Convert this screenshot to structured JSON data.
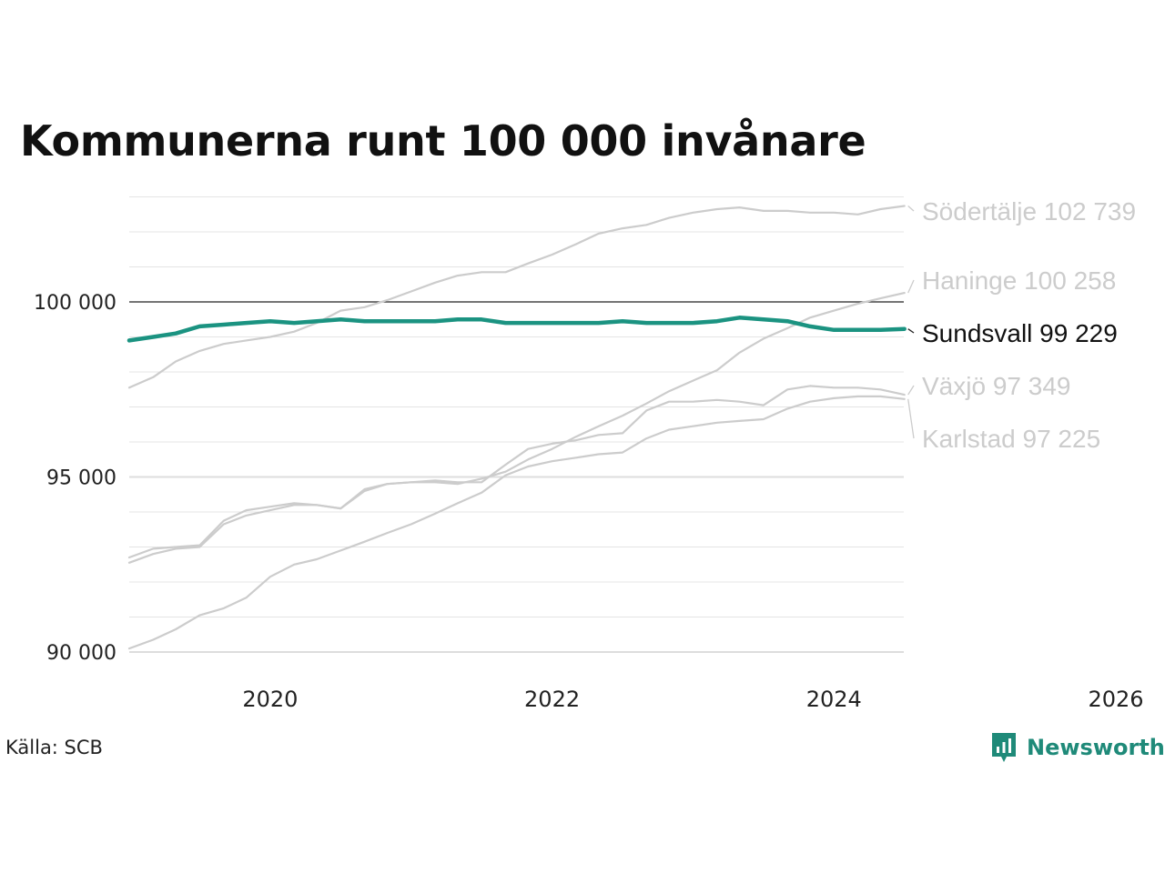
{
  "title": "Kommunerna runt 100 000 invånare",
  "source": "Källa: SCB",
  "brand": "Newsworthy",
  "colors": {
    "highlight": "#1b9381",
    "muted": "#cccccc",
    "reference": "#222222",
    "grid": "#e4e4e4",
    "brand": "#1f8a79"
  },
  "chart_data": {
    "type": "line",
    "title": "Kommunerna runt 100 000 invånare",
    "xlabel": "",
    "ylabel": "",
    "xlim": [
      2019.0,
      2026.0
    ],
    "ylim": [
      90000,
      103000
    ],
    "x_ticks": [
      2020,
      2022,
      2024,
      2026
    ],
    "x_tick_labels": [
      "2020",
      "2022",
      "2024",
      "2026"
    ],
    "y_ticks": [
      90000,
      95000,
      100000
    ],
    "y_tick_labels": [
      "90 000",
      "95 000",
      "100 000"
    ],
    "minor_grid_step": 1000,
    "reference_line": 100000,
    "grid": true,
    "legend": "none (direct labels at line ends)",
    "highlight_series": "Sundsvall",
    "series": [
      {
        "name": "Södertälje",
        "end_label": "Södertälje 102 739",
        "points": [
          [
            2019.0,
            97550
          ],
          [
            2019.17,
            97850
          ],
          [
            2019.33,
            98300
          ],
          [
            2019.5,
            98600
          ],
          [
            2019.67,
            98800
          ],
          [
            2019.83,
            98900
          ],
          [
            2020.0,
            99000
          ],
          [
            2020.17,
            99150
          ],
          [
            2020.33,
            99400
          ],
          [
            2020.5,
            99750
          ],
          [
            2020.67,
            99850
          ],
          [
            2020.83,
            100050
          ],
          [
            2021.0,
            100300
          ],
          [
            2021.17,
            100550
          ],
          [
            2021.33,
            100750
          ],
          [
            2021.5,
            100850
          ],
          [
            2021.67,
            100850
          ],
          [
            2021.83,
            101100
          ],
          [
            2022.0,
            101350
          ],
          [
            2022.17,
            101650
          ],
          [
            2022.33,
            101950
          ],
          [
            2022.5,
            102100
          ],
          [
            2022.67,
            102200
          ],
          [
            2022.83,
            102400
          ],
          [
            2023.0,
            102550
          ],
          [
            2023.17,
            102650
          ],
          [
            2023.33,
            102700
          ],
          [
            2023.5,
            102600
          ],
          [
            2023.67,
            102600
          ],
          [
            2023.83,
            102550
          ],
          [
            2024.0,
            102550
          ],
          [
            2024.17,
            102500
          ],
          [
            2024.33,
            102650
          ],
          [
            2024.5,
            102739
          ]
        ]
      },
      {
        "name": "Haninge",
        "end_label": "Haninge 100 258",
        "points": [
          [
            2019.0,
            92550
          ],
          [
            2019.17,
            92800
          ],
          [
            2019.33,
            92950
          ],
          [
            2019.5,
            93000
          ],
          [
            2019.67,
            93650
          ],
          [
            2019.83,
            93900
          ],
          [
            2020.0,
            94050
          ],
          [
            2020.17,
            94200
          ],
          [
            2020.33,
            94200
          ],
          [
            2020.5,
            94100
          ],
          [
            2020.67,
            94600
          ],
          [
            2020.83,
            94800
          ],
          [
            2021.0,
            94850
          ],
          [
            2021.17,
            94850
          ],
          [
            2021.33,
            94800
          ],
          [
            2021.5,
            94950
          ],
          [
            2021.67,
            95150
          ],
          [
            2021.83,
            95500
          ],
          [
            2022.0,
            95800
          ],
          [
            2022.17,
            96150
          ],
          [
            2022.33,
            96450
          ],
          [
            2022.5,
            96750
          ],
          [
            2022.67,
            97100
          ],
          [
            2022.83,
            97450
          ],
          [
            2023.0,
            97750
          ],
          [
            2023.17,
            98050
          ],
          [
            2023.33,
            98550
          ],
          [
            2023.5,
            98950
          ],
          [
            2023.67,
            99250
          ],
          [
            2023.83,
            99550
          ],
          [
            2024.0,
            99750
          ],
          [
            2024.17,
            99950
          ],
          [
            2024.33,
            100100
          ],
          [
            2024.5,
            100258
          ]
        ]
      },
      {
        "name": "Växjö",
        "end_label": "Växjö  97 349",
        "points": [
          [
            2019.0,
            92700
          ],
          [
            2019.17,
            92950
          ],
          [
            2019.33,
            93000
          ],
          [
            2019.5,
            93050
          ],
          [
            2019.67,
            93750
          ],
          [
            2019.83,
            94050
          ],
          [
            2020.0,
            94150
          ],
          [
            2020.17,
            94250
          ],
          [
            2020.33,
            94200
          ],
          [
            2020.5,
            94100
          ],
          [
            2020.67,
            94650
          ],
          [
            2020.83,
            94800
          ],
          [
            2021.0,
            94850
          ],
          [
            2021.17,
            94900
          ],
          [
            2021.33,
            94850
          ],
          [
            2021.5,
            94850
          ],
          [
            2021.67,
            95350
          ],
          [
            2021.83,
            95800
          ],
          [
            2022.0,
            95950
          ],
          [
            2022.17,
            96050
          ],
          [
            2022.33,
            96200
          ],
          [
            2022.5,
            96250
          ],
          [
            2022.67,
            96900
          ],
          [
            2022.83,
            97150
          ],
          [
            2023.0,
            97150
          ],
          [
            2023.17,
            97200
          ],
          [
            2023.33,
            97150
          ],
          [
            2023.5,
            97050
          ],
          [
            2023.67,
            97500
          ],
          [
            2023.83,
            97600
          ],
          [
            2024.0,
            97550
          ],
          [
            2024.17,
            97550
          ],
          [
            2024.33,
            97500
          ],
          [
            2024.5,
            97349
          ]
        ]
      },
      {
        "name": "Karlstad",
        "end_label": "Karlstad  97 225",
        "points": [
          [
            2019.0,
            90100
          ],
          [
            2019.17,
            90350
          ],
          [
            2019.33,
            90650
          ],
          [
            2019.5,
            91050
          ],
          [
            2019.67,
            91250
          ],
          [
            2019.83,
            91550
          ],
          [
            2020.0,
            92150
          ],
          [
            2020.17,
            92500
          ],
          [
            2020.33,
            92650
          ],
          [
            2020.5,
            92900
          ],
          [
            2020.67,
            93150
          ],
          [
            2020.83,
            93400
          ],
          [
            2021.0,
            93650
          ],
          [
            2021.17,
            93950
          ],
          [
            2021.33,
            94250
          ],
          [
            2021.5,
            94550
          ],
          [
            2021.67,
            95050
          ],
          [
            2021.83,
            95300
          ],
          [
            2022.0,
            95450
          ],
          [
            2022.17,
            95550
          ],
          [
            2022.33,
            95650
          ],
          [
            2022.5,
            95700
          ],
          [
            2022.67,
            96100
          ],
          [
            2022.83,
            96350
          ],
          [
            2023.0,
            96450
          ],
          [
            2023.17,
            96550
          ],
          [
            2023.33,
            96600
          ],
          [
            2023.5,
            96650
          ],
          [
            2023.67,
            96950
          ],
          [
            2023.83,
            97150
          ],
          [
            2024.0,
            97250
          ],
          [
            2024.17,
            97300
          ],
          [
            2024.33,
            97300
          ],
          [
            2024.5,
            97225
          ]
        ]
      },
      {
        "name": "Sundsvall",
        "end_label": "Sundsvall  99 229",
        "points": [
          [
            2019.0,
            98900
          ],
          [
            2019.17,
            99000
          ],
          [
            2019.33,
            99100
          ],
          [
            2019.5,
            99300
          ],
          [
            2019.67,
            99350
          ],
          [
            2019.83,
            99400
          ],
          [
            2020.0,
            99450
          ],
          [
            2020.17,
            99400
          ],
          [
            2020.33,
            99450
          ],
          [
            2020.5,
            99500
          ],
          [
            2020.67,
            99450
          ],
          [
            2020.83,
            99450
          ],
          [
            2021.0,
            99450
          ],
          [
            2021.17,
            99450
          ],
          [
            2021.33,
            99500
          ],
          [
            2021.5,
            99500
          ],
          [
            2021.67,
            99400
          ],
          [
            2021.83,
            99400
          ],
          [
            2022.0,
            99400
          ],
          [
            2022.17,
            99400
          ],
          [
            2022.33,
            99400
          ],
          [
            2022.5,
            99450
          ],
          [
            2022.67,
            99400
          ],
          [
            2022.83,
            99400
          ],
          [
            2023.0,
            99400
          ],
          [
            2023.17,
            99450
          ],
          [
            2023.33,
            99550
          ],
          [
            2023.5,
            99500
          ],
          [
            2023.67,
            99450
          ],
          [
            2023.83,
            99300
          ],
          [
            2024.0,
            99200
          ],
          [
            2024.17,
            99200
          ],
          [
            2024.33,
            99200
          ],
          [
            2024.5,
            99229
          ]
        ]
      }
    ]
  }
}
